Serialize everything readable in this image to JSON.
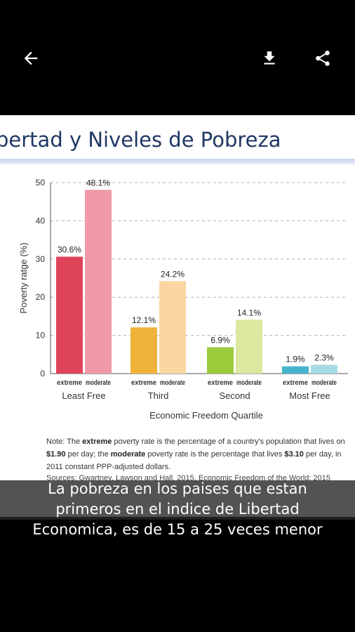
{
  "toolbar": {
    "back_icon": "arrow-back-icon",
    "download_icon": "download-icon",
    "share_icon": "share-icon",
    "icon_color": "#ffffff"
  },
  "slide": {
    "title": "bertad y Niveles de Pobreza",
    "note_prefix": "Note: The ",
    "note_extreme": "extreme",
    "note_part2": " poverty rate is the percentage of a country's population that lives on ",
    "note_190": "$1.90",
    "note_part3": " per day; the ",
    "note_moderate": "moderate",
    "note_part4": " poverty rate is the percentage that lives ",
    "note_310": "$3.10",
    "note_part5": " per day, in 2011 constant PPP-adjusted dollars.",
    "sources": "Sources: Gwartney, Lawson and Hall, 2015, Economic Freedom of the World: 2015"
  },
  "caption": {
    "line1": "La pobreza en los paises que estan",
    "line2": "primeros en el indice de Libertad",
    "line3": "Economica, es de 15 a 25 veces menor"
  },
  "chart_data": {
    "type": "bar",
    "xlabel": "Economic Freedom Quartile",
    "ylabel": "Poverty ratge (%)",
    "ylim": [
      0,
      50
    ],
    "yticks": [
      0,
      10,
      20,
      30,
      40,
      50
    ],
    "grid": true,
    "groups": [
      {
        "name": "Least Free",
        "values": [
          30.6,
          48.1
        ],
        "labels": [
          "30.6%",
          "48.1%"
        ],
        "colors": [
          "#e0445a",
          "#ef9aa6"
        ]
      },
      {
        "name": "Third",
        "values": [
          12.1,
          24.2
        ],
        "labels": [
          "12.1%",
          "24.2%"
        ],
        "colors": [
          "#f0b23a",
          "#fad7a0"
        ]
      },
      {
        "name": "Second",
        "values": [
          6.9,
          14.1
        ],
        "labels": [
          "6.9%",
          "14.1%"
        ],
        "colors": [
          "#9ccc3c",
          "#dbe8a0"
        ]
      },
      {
        "name": "Most Free",
        "values": [
          1.9,
          2.3
        ],
        "labels": [
          "1.9%",
          "2.3%"
        ],
        "colors": [
          "#46b4cc",
          "#a6dbe6"
        ]
      }
    ],
    "subcategories": [
      "extreme",
      "moderate"
    ]
  }
}
